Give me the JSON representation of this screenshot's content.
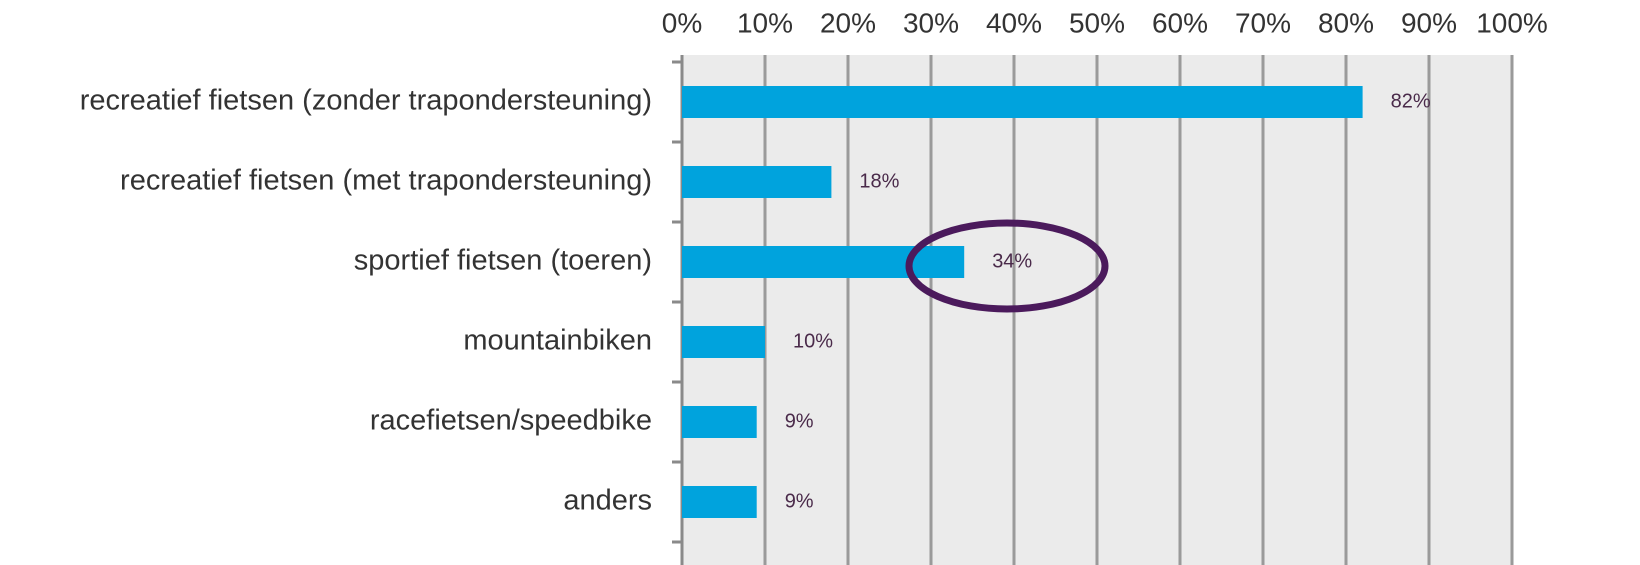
{
  "chart_data": {
    "type": "bar",
    "orientation": "horizontal",
    "categories": [
      "recreatief fietsen (zonder trapondersteuning)",
      "recreatief fietsen (met trapondersteuning)",
      "sportief fietsen (toeren)",
      "mountainbiken",
      "racefietsen/speedbike",
      "anders"
    ],
    "values": [
      82,
      18,
      34,
      10,
      9,
      9
    ],
    "value_labels": [
      "82%",
      "18%",
      "34%",
      "10%",
      "9%",
      "9%"
    ],
    "color": "#00a3dd",
    "xlim": [
      0,
      100
    ],
    "xticks": [
      {
        "value": 0,
        "label": "0%"
      },
      {
        "value": 10,
        "label": "10%"
      },
      {
        "value": 20,
        "label": "20%"
      },
      {
        "value": 30,
        "label": "30%"
      },
      {
        "value": 40,
        "label": "40%"
      },
      {
        "value": 50,
        "label": "50%"
      },
      {
        "value": 60,
        "label": "60%"
      },
      {
        "value": 70,
        "label": "70%"
      },
      {
        "value": 80,
        "label": "80%"
      },
      {
        "value": 90,
        "label": "90%"
      },
      {
        "value": 100,
        "label": "100%"
      }
    ],
    "grid": true
  }
}
